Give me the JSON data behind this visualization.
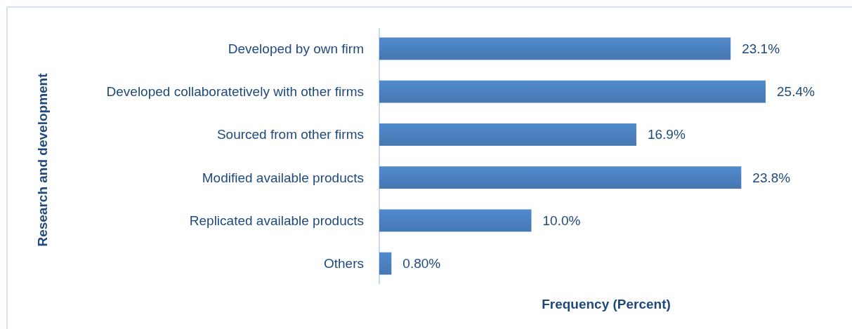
{
  "chart_data": {
    "type": "bar",
    "orientation": "horizontal",
    "xlabel": "Frequency (Percent)",
    "ylabel": "Research and development",
    "categories": [
      "Developed by own firm",
      "Developed collaboratetively with other firms",
      "Sourced from other firms",
      "Modified available products",
      "Replicated available products",
      "Others"
    ],
    "values": [
      23.1,
      25.4,
      16.9,
      23.8,
      10.0,
      0.8
    ],
    "value_labels": [
      "23.1%",
      "25.4%",
      "16.9%",
      "23.8%",
      "10.0%",
      "0.80%"
    ],
    "color": "#4a7ebb"
  }
}
